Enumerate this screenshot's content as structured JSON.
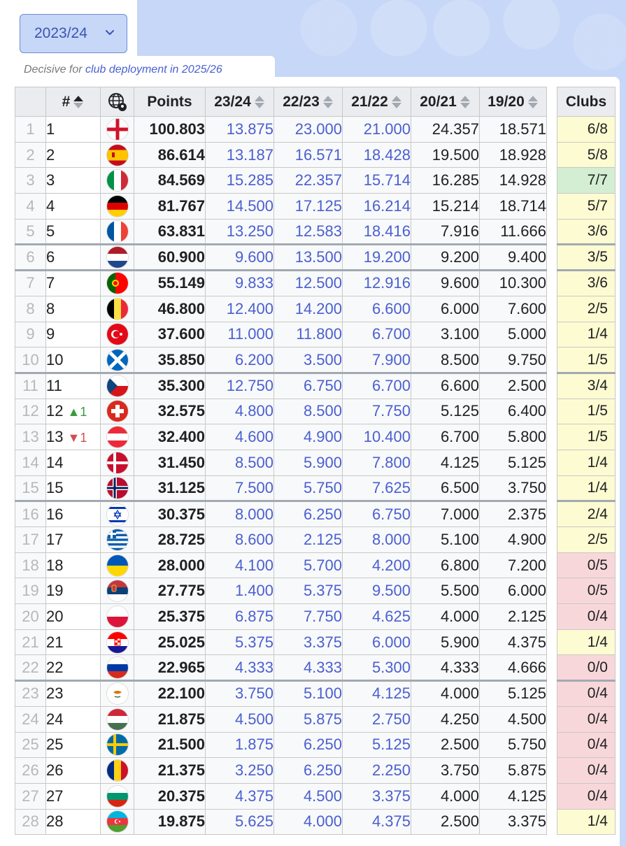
{
  "season": {
    "selected": "2023/24"
  },
  "notice": {
    "prefix": "Decisive for ",
    "link": "club deployment in 2025/26"
  },
  "headers": {
    "rank": "#",
    "points": "Points",
    "s1": "23/24",
    "s2": "22/23",
    "s3": "21/22",
    "s4": "20/21",
    "s5": "19/20",
    "clubs": "Clubs"
  },
  "rows": [
    {
      "idx": "1",
      "rank": "1",
      "move": "",
      "dir": "",
      "flag": "england-flag-icon",
      "points": "100.803",
      "s1": "13.875",
      "s2": "23.000",
      "s3": "21.000",
      "s4": "24.357",
      "s5": "18.571",
      "clubs": "6/8",
      "cc": "yel",
      "sep": false
    },
    {
      "idx": "2",
      "rank": "2",
      "move": "",
      "dir": "",
      "flag": "spain-flag-icon",
      "points": "86.614",
      "s1": "13.187",
      "s2": "16.571",
      "s3": "18.428",
      "s4": "19.500",
      "s5": "18.928",
      "clubs": "5/8",
      "cc": "yel",
      "sep": false
    },
    {
      "idx": "3",
      "rank": "3",
      "move": "",
      "dir": "",
      "flag": "italy-flag-icon",
      "points": "84.569",
      "s1": "15.285",
      "s2": "22.357",
      "s3": "15.714",
      "s4": "16.285",
      "s5": "14.928",
      "clubs": "7/7",
      "cc": "grn",
      "sep": false
    },
    {
      "idx": "4",
      "rank": "4",
      "move": "",
      "dir": "",
      "flag": "germany-flag-icon",
      "points": "81.767",
      "s1": "14.500",
      "s2": "17.125",
      "s3": "16.214",
      "s4": "15.214",
      "s5": "18.714",
      "clubs": "5/7",
      "cc": "yel",
      "sep": false
    },
    {
      "idx": "5",
      "rank": "5",
      "move": "",
      "dir": "",
      "flag": "france-flag-icon",
      "points": "63.831",
      "s1": "13.250",
      "s2": "12.583",
      "s3": "18.416",
      "s4": "7.916",
      "s5": "11.666",
      "clubs": "3/6",
      "cc": "yel",
      "sep": false
    },
    {
      "idx": "6",
      "rank": "6",
      "move": "",
      "dir": "",
      "flag": "netherlands-flag-icon",
      "points": "60.900",
      "s1": "9.600",
      "s2": "13.500",
      "s3": "19.200",
      "s4": "9.200",
      "s5": "9.400",
      "clubs": "3/5",
      "cc": "yel",
      "sep": true
    },
    {
      "idx": "7",
      "rank": "7",
      "move": "",
      "dir": "",
      "flag": "portugal-flag-icon",
      "points": "55.149",
      "s1": "9.833",
      "s2": "12.500",
      "s3": "12.916",
      "s4": "9.600",
      "s5": "10.300",
      "clubs": "3/6",
      "cc": "yel",
      "sep": true
    },
    {
      "idx": "8",
      "rank": "8",
      "move": "",
      "dir": "",
      "flag": "belgium-flag-icon",
      "points": "46.800",
      "s1": "12.400",
      "s2": "14.200",
      "s3": "6.600",
      "s4": "6.000",
      "s5": "7.600",
      "clubs": "2/5",
      "cc": "yel",
      "sep": false
    },
    {
      "idx": "9",
      "rank": "9",
      "move": "",
      "dir": "",
      "flag": "turkey-flag-icon",
      "points": "37.600",
      "s1": "11.000",
      "s2": "11.800",
      "s3": "6.700",
      "s4": "3.100",
      "s5": "5.000",
      "clubs": "1/4",
      "cc": "yel",
      "sep": false
    },
    {
      "idx": "10",
      "rank": "10",
      "move": "",
      "dir": "",
      "flag": "scotland-flag-icon",
      "points": "35.850",
      "s1": "6.200",
      "s2": "3.500",
      "s3": "7.900",
      "s4": "8.500",
      "s5": "9.750",
      "clubs": "1/5",
      "cc": "yel",
      "sep": false
    },
    {
      "idx": "11",
      "rank": "11",
      "move": "",
      "dir": "",
      "flag": "czechia-flag-icon",
      "points": "35.300",
      "s1": "12.750",
      "s2": "6.750",
      "s3": "6.700",
      "s4": "6.600",
      "s5": "2.500",
      "clubs": "3/4",
      "cc": "yel",
      "sep": true
    },
    {
      "idx": "12",
      "rank": "12",
      "move": "1",
      "dir": "up",
      "flag": "switzerland-flag-icon",
      "points": "32.575",
      "s1": "4.800",
      "s2": "8.500",
      "s3": "7.750",
      "s4": "5.125",
      "s5": "6.400",
      "clubs": "1/5",
      "cc": "yel",
      "sep": false
    },
    {
      "idx": "13",
      "rank": "13",
      "move": "1",
      "dir": "down",
      "flag": "austria-flag-icon",
      "points": "32.400",
      "s1": "4.600",
      "s2": "4.900",
      "s3": "10.400",
      "s4": "6.700",
      "s5": "5.800",
      "clubs": "1/5",
      "cc": "yel",
      "sep": false
    },
    {
      "idx": "14",
      "rank": "14",
      "move": "",
      "dir": "",
      "flag": "denmark-flag-icon",
      "points": "31.450",
      "s1": "8.500",
      "s2": "5.900",
      "s3": "7.800",
      "s4": "4.125",
      "s5": "5.125",
      "clubs": "1/4",
      "cc": "yel",
      "sep": false
    },
    {
      "idx": "15",
      "rank": "15",
      "move": "",
      "dir": "",
      "flag": "norway-flag-icon",
      "points": "31.125",
      "s1": "7.500",
      "s2": "5.750",
      "s3": "7.625",
      "s4": "6.500",
      "s5": "3.750",
      "clubs": "1/4",
      "cc": "yel",
      "sep": false
    },
    {
      "idx": "16",
      "rank": "16",
      "move": "",
      "dir": "",
      "flag": "israel-flag-icon",
      "points": "30.375",
      "s1": "8.000",
      "s2": "6.250",
      "s3": "6.750",
      "s4": "7.000",
      "s5": "2.375",
      "clubs": "2/4",
      "cc": "yel",
      "sep": true
    },
    {
      "idx": "17",
      "rank": "17",
      "move": "",
      "dir": "",
      "flag": "greece-flag-icon",
      "points": "28.725",
      "s1": "8.600",
      "s2": "2.125",
      "s3": "8.000",
      "s4": "5.100",
      "s5": "4.900",
      "clubs": "2/5",
      "cc": "yel",
      "sep": false
    },
    {
      "idx": "18",
      "rank": "18",
      "move": "",
      "dir": "",
      "flag": "ukraine-flag-icon",
      "points": "28.000",
      "s1": "4.100",
      "s2": "5.700",
      "s3": "4.200",
      "s4": "6.800",
      "s5": "7.200",
      "clubs": "0/5",
      "cc": "red",
      "sep": false
    },
    {
      "idx": "19",
      "rank": "19",
      "move": "",
      "dir": "",
      "flag": "serbia-flag-icon",
      "points": "27.775",
      "s1": "1.400",
      "s2": "5.375",
      "s3": "9.500",
      "s4": "5.500",
      "s5": "6.000",
      "clubs": "0/5",
      "cc": "red",
      "sep": false
    },
    {
      "idx": "20",
      "rank": "20",
      "move": "",
      "dir": "",
      "flag": "poland-flag-icon",
      "points": "25.375",
      "s1": "6.875",
      "s2": "7.750",
      "s3": "4.625",
      "s4": "4.000",
      "s5": "2.125",
      "clubs": "0/4",
      "cc": "red",
      "sep": false
    },
    {
      "idx": "21",
      "rank": "21",
      "move": "",
      "dir": "",
      "flag": "croatia-flag-icon",
      "points": "25.025",
      "s1": "5.375",
      "s2": "3.375",
      "s3": "6.000",
      "s4": "5.900",
      "s5": "4.375",
      "clubs": "1/4",
      "cc": "yel",
      "sep": false
    },
    {
      "idx": "22",
      "rank": "22",
      "move": "",
      "dir": "",
      "flag": "russia-flag-icon",
      "points": "22.965",
      "s1": "4.333",
      "s2": "4.333",
      "s3": "5.300",
      "s4": "4.333",
      "s5": "4.666",
      "clubs": "0/0",
      "cc": "red",
      "sep": false
    },
    {
      "idx": "23",
      "rank": "23",
      "move": "",
      "dir": "",
      "flag": "cyprus-flag-icon",
      "points": "22.100",
      "s1": "3.750",
      "s2": "5.100",
      "s3": "4.125",
      "s4": "4.000",
      "s5": "5.125",
      "clubs": "0/4",
      "cc": "red",
      "sep": true
    },
    {
      "idx": "24",
      "rank": "24",
      "move": "",
      "dir": "",
      "flag": "hungary-flag-icon",
      "points": "21.875",
      "s1": "4.500",
      "s2": "5.875",
      "s3": "2.750",
      "s4": "4.250",
      "s5": "4.500",
      "clubs": "0/4",
      "cc": "red",
      "sep": false
    },
    {
      "idx": "25",
      "rank": "25",
      "move": "",
      "dir": "",
      "flag": "sweden-flag-icon",
      "points": "21.500",
      "s1": "1.875",
      "s2": "6.250",
      "s3": "5.125",
      "s4": "2.500",
      "s5": "5.750",
      "clubs": "0/4",
      "cc": "red",
      "sep": false
    },
    {
      "idx": "26",
      "rank": "26",
      "move": "",
      "dir": "",
      "flag": "romania-flag-icon",
      "points": "21.375",
      "s1": "3.250",
      "s2": "6.250",
      "s3": "2.250",
      "s4": "3.750",
      "s5": "5.875",
      "clubs": "0/4",
      "cc": "red",
      "sep": false
    },
    {
      "idx": "27",
      "rank": "27",
      "move": "",
      "dir": "",
      "flag": "bulgaria-flag-icon",
      "points": "20.375",
      "s1": "4.375",
      "s2": "4.500",
      "s3": "3.375",
      "s4": "4.000",
      "s5": "4.125",
      "clubs": "0/4",
      "cc": "red",
      "sep": false
    },
    {
      "idx": "28",
      "rank": "28",
      "move": "",
      "dir": "",
      "flag": "azerbaijan-flag-icon",
      "points": "19.875",
      "s1": "5.625",
      "s2": "4.000",
      "s3": "4.375",
      "s4": "2.500",
      "s5": "3.375",
      "clubs": "1/4",
      "cc": "yel",
      "sep": false
    }
  ],
  "colors": {
    "accent_blue": "#4a5fd0",
    "header_bg": "#eaecf0",
    "clubs_yellow": "#fdfbd2",
    "clubs_green": "#d4eed4",
    "clubs_red": "#f8d7da"
  }
}
